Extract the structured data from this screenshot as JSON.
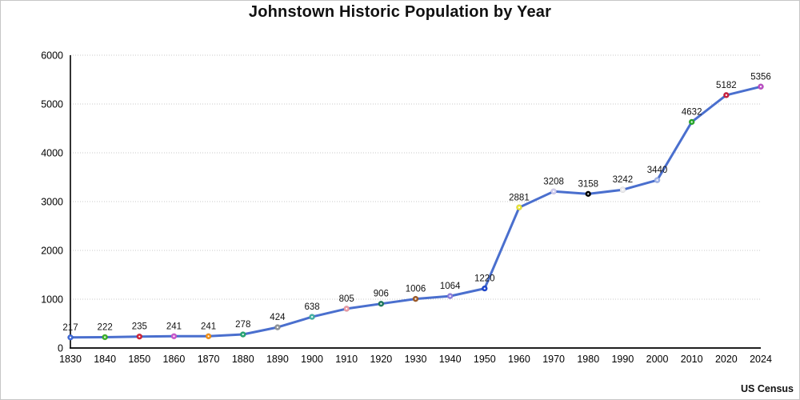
{
  "chart_data": {
    "type": "line",
    "title": "Johnstown Historic Population by Year",
    "source": "US Census",
    "xlabel": "",
    "ylabel": "",
    "categories": [
      "1830",
      "1840",
      "1850",
      "1860",
      "1870",
      "1880",
      "1890",
      "1900",
      "1910",
      "1920",
      "1930",
      "1940",
      "1950",
      "1960",
      "1970",
      "1980",
      "1990",
      "2000",
      "2010",
      "2020",
      "2024"
    ],
    "values": [
      217,
      222,
      235,
      241,
      241,
      278,
      424,
      638,
      805,
      906,
      1006,
      1064,
      1220,
      2881,
      3208,
      3158,
      3242,
      3440,
      4632,
      5182,
      5356
    ],
    "ylim": [
      0,
      6000
    ],
    "ytick_step": 1000,
    "grid": "horizontal-dotted",
    "legend": "none",
    "line_color": "#4a6fce",
    "gridline_color": "#c9c9c9",
    "axis_color": "#000000",
    "label_color": "#111111",
    "point_colors": [
      "#3f6ad8",
      "#3db22c",
      "#cf2438",
      "#c958cd",
      "#f09018",
      "#27a673",
      "#8f9499",
      "#45b1a5",
      "#eb9aa4",
      "#207a5d",
      "#9e5b28",
      "#8f80e0",
      "#1e46cf",
      "#e9e435",
      "#cfcbee",
      "#000000",
      "#e9e9ec",
      "#9fb3ea",
      "#27a82a",
      "#c9203e",
      "#ba4ec4"
    ]
  }
}
